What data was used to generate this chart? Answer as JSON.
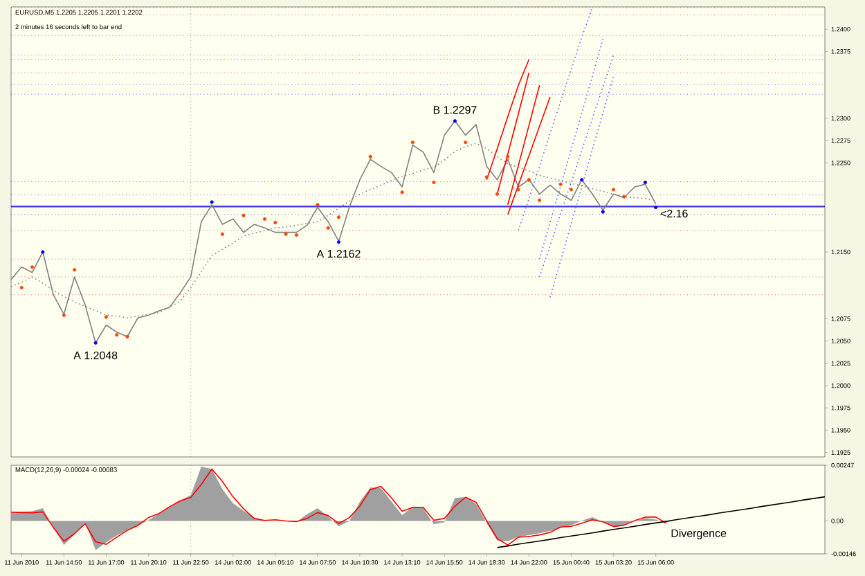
{
  "chart_data": [
    {
      "type": "line",
      "title": "EURUSD,M5  1.2205 1.2205 1.2201 1.2202",
      "subtitle": "2 minutes 16 seconds left to bar end",
      "categories": [
        null,
        "11 Jun 2010",
        null,
        null,
        null,
        "11 Jun 14:50",
        null,
        null,
        null,
        "11 Jun 17:00",
        null,
        null,
        null,
        "11 Jun 20:10",
        null,
        null,
        null,
        "11 Jun 22:50",
        null,
        null,
        null,
        "14 Jun 02:00",
        null,
        null,
        null,
        "14 Jun 05:10",
        null,
        null,
        null,
        "14 Jun 07:50",
        null,
        null,
        null,
        "14 Jun 10:30",
        null,
        null,
        null,
        "14 Jun 13:10",
        null,
        null,
        null,
        "14 Jun 15:50",
        null,
        null,
        null,
        "14 Jun 18:30",
        null,
        null,
        null,
        "14 Jun 22:00",
        null,
        null,
        null,
        "15 Jun 00:40",
        null,
        null,
        null,
        "15 Jun 03:20",
        null,
        null,
        null,
        "15 Jun 06:00",
        null,
        null,
        null,
        null,
        null,
        null,
        null,
        null,
        null,
        null,
        null,
        null,
        null,
        null,
        null,
        null
      ],
      "ylim": [
        1.192,
        1.2425
      ],
      "tick_labels": "y",
      "yticks": [
        {
          "value": 1.24,
          "label": "1.2400"
        },
        {
          "value": 1.2375,
          "label": "1.2375"
        },
        {
          "value": 1.23,
          "label": "1.2300"
        },
        {
          "value": 1.2275,
          "label": "1.2275"
        },
        {
          "value": 1.225,
          "label": "1.2250"
        },
        {
          "value": 1.215,
          "label": "1.2150"
        },
        {
          "value": 1.2075,
          "label": "1.2075"
        },
        {
          "value": 1.205,
          "label": "1.2050"
        },
        {
          "value": 1.2025,
          "label": "1.2025"
        },
        {
          "value": 1.2,
          "label": "1.2000"
        },
        {
          "value": 1.1975,
          "label": "1.1975"
        },
        {
          "value": 1.195,
          "label": "1.1950"
        },
        {
          "value": 1.1925,
          "label": "1.1925"
        }
      ],
      "series": [
        {
          "color": "#808080",
          "values": [
            1.2119,
            1.2133,
            1.2127,
            1.215,
            1.2102,
            1.208,
            1.2122,
            1.2091,
            1.2048,
            1.2068,
            1.206,
            1.2055,
            1.2076,
            1.2079,
            1.2084,
            1.2088,
            1.2104,
            1.2122,
            1.2184,
            1.2203,
            1.2181,
            1.2187,
            1.2172,
            1.2181,
            1.2177,
            1.2172,
            1.2172,
            1.2172,
            1.218,
            1.22,
            1.2184,
            1.2162,
            1.22,
            1.2231,
            1.2254,
            1.2246,
            1.2239,
            1.2223,
            1.227,
            1.2262,
            1.2239,
            1.2281,
            1.2297,
            1.2281,
            1.2293,
            1.2246,
            1.2231,
            1.2254,
            1.2223,
            1.2231,
            1.2215,
            1.2225,
            1.2215,
            1.2208,
            1.2231,
            1.2215,
            1.2197,
            1.2215,
            1.2211,
            1.2223,
            1.2226,
            1.2204,
            null,
            null,
            null,
            null,
            null,
            null,
            null,
            null,
            null,
            null,
            null,
            null,
            null,
            null,
            null,
            null
          ]
        },
        {
          "color": "#808080",
          "line_style": "dotted",
          "values": [
            1.2111,
            1.2116,
            1.2122,
            1.2115,
            1.2107,
            1.21,
            1.2094,
            1.2089,
            1.2084,
            1.2079,
            1.2078,
            1.2076,
            1.2078,
            1.208,
            1.2082,
            1.2088,
            1.2095,
            1.211,
            1.2128,
            1.2146,
            1.2153,
            1.216,
            1.2168,
            1.2171,
            1.2174,
            1.2177,
            1.2178,
            1.218,
            1.2182,
            1.2184,
            1.2191,
            1.2199,
            1.2207,
            1.2215,
            1.222,
            1.2225,
            1.223,
            1.2235,
            1.2238,
            1.2242,
            1.2245,
            1.2253,
            1.2263,
            1.2268,
            1.2272,
            1.2266,
            1.2257,
            1.2249,
            1.2245,
            1.2241,
            1.2236,
            1.2233,
            1.223,
            1.2227,
            1.2224,
            1.2221,
            1.2218,
            1.2215,
            1.2212,
            1.2211,
            1.221,
            1.2208,
            null,
            null,
            null,
            null,
            null,
            null,
            null,
            null,
            null,
            null,
            null,
            null,
            null,
            null,
            null,
            null
          ]
        },
        {
          "type": "scatter",
          "marker": "circle",
          "color": "#0000ff",
          "values": [
            null,
            null,
            null,
            1.215,
            null,
            null,
            null,
            null,
            1.2048,
            null,
            null,
            null,
            null,
            null,
            null,
            null,
            null,
            null,
            null,
            1.2206,
            null,
            null,
            null,
            null,
            null,
            null,
            null,
            null,
            null,
            null,
            null,
            1.2161,
            null,
            null,
            null,
            null,
            null,
            null,
            null,
            null,
            null,
            null,
            1.2297,
            null,
            null,
            null,
            null,
            null,
            null,
            null,
            null,
            null,
            null,
            null,
            1.2231,
            null,
            1.2195,
            null,
            null,
            null,
            1.2228,
            1.22,
            null,
            null,
            null,
            null,
            null,
            null,
            null,
            null,
            null,
            null,
            null,
            null,
            null,
            null,
            null,
            null
          ]
        },
        {
          "type": "scatter",
          "marker": "circle",
          "color": "#ff4500",
          "values": [
            null,
            1.211,
            1.2133,
            null,
            null,
            1.2079,
            1.213,
            null,
            null,
            1.2077,
            1.2057,
            1.2055,
            null,
            null,
            null,
            null,
            null,
            null,
            null,
            null,
            1.217,
            null,
            1.2191,
            null,
            1.2187,
            1.2183,
            1.217,
            1.2169,
            null,
            1.2203,
            1.2177,
            1.2189,
            null,
            null,
            1.2257,
            null,
            null,
            1.2217,
            1.2273,
            null,
            1.2228,
            null,
            null,
            1.2273,
            null,
            1.2234,
            1.2215,
            1.2257,
            1.222,
            1.2231,
            1.2208,
            null,
            1.2226,
            1.222,
            null,
            null,
            null,
            1.222,
            1.2212,
            null,
            null,
            null,
            null,
            null,
            null,
            null,
            null,
            null,
            null,
            null,
            null,
            null,
            null,
            null,
            null,
            null,
            null,
            null
          ]
        },
        {
          "color": "#ff0000",
          "values": [
            null,
            null,
            null,
            null,
            null,
            null,
            null,
            null,
            null,
            null,
            null,
            null,
            null,
            null,
            null,
            null,
            null,
            null,
            null,
            null,
            null,
            null,
            null,
            null,
            null,
            null,
            null,
            null,
            null,
            null,
            null,
            null,
            null,
            null,
            null,
            null,
            null,
            null,
            null,
            null,
            null,
            null,
            null,
            null,
            null,
            1.2231,
            1.2266,
            1.2302,
            1.2337,
            1.2366,
            null,
            null,
            null,
            null,
            null,
            null,
            null,
            null,
            null,
            null,
            null,
            null,
            null,
            null,
            null,
            null,
            null,
            null,
            null,
            null,
            null,
            null,
            null,
            null,
            null,
            null,
            null,
            null
          ]
        },
        {
          "color": "#ff0000",
          "values": [
            null,
            null,
            null,
            null,
            null,
            null,
            null,
            null,
            null,
            null,
            null,
            null,
            null,
            null,
            null,
            null,
            null,
            null,
            null,
            null,
            null,
            null,
            null,
            null,
            null,
            null,
            null,
            null,
            null,
            null,
            null,
            null,
            null,
            null,
            null,
            null,
            null,
            null,
            null,
            null,
            null,
            null,
            null,
            null,
            null,
            null,
            1.2215,
            1.226,
            1.2305,
            1.2351,
            null,
            null,
            null,
            null,
            null,
            null,
            null,
            null,
            null,
            null,
            null,
            null,
            null,
            null,
            null,
            null,
            null,
            null,
            null,
            null,
            null,
            null,
            null,
            null,
            null,
            null,
            null,
            null
          ]
        },
        {
          "color": "#ff0000",
          "values": [
            null,
            null,
            null,
            null,
            null,
            null,
            null,
            null,
            null,
            null,
            null,
            null,
            null,
            null,
            null,
            null,
            null,
            null,
            null,
            null,
            null,
            null,
            null,
            null,
            null,
            null,
            null,
            null,
            null,
            null,
            null,
            null,
            null,
            null,
            null,
            null,
            null,
            null,
            null,
            null,
            null,
            null,
            null,
            null,
            null,
            null,
            null,
            1.2203,
            1.2247,
            1.2292,
            1.2337,
            null,
            null,
            null,
            null,
            null,
            null,
            null,
            null,
            null,
            null,
            null,
            null,
            null,
            null,
            null,
            null,
            null,
            null,
            null,
            null,
            null,
            null,
            null,
            null,
            null,
            null,
            null
          ]
        },
        {
          "color": "#ff0000",
          "values": [
            null,
            null,
            null,
            null,
            null,
            null,
            null,
            null,
            null,
            null,
            null,
            null,
            null,
            null,
            null,
            null,
            null,
            null,
            null,
            null,
            null,
            null,
            null,
            null,
            null,
            null,
            null,
            null,
            null,
            null,
            null,
            null,
            null,
            null,
            null,
            null,
            null,
            null,
            null,
            null,
            null,
            null,
            null,
            null,
            null,
            null,
            null,
            1.2192,
            1.2225,
            1.2258,
            1.2291,
            1.2324,
            null,
            null,
            null,
            null,
            null,
            null,
            null,
            null,
            null,
            null,
            null,
            null,
            null,
            null,
            null,
            null,
            null,
            null,
            null,
            null,
            null,
            null,
            null,
            null,
            null,
            null
          ]
        },
        {
          "color": "#6060ff",
          "line_style": "dotted",
          "values": [
            null,
            null,
            null,
            null,
            null,
            null,
            null,
            null,
            null,
            null,
            null,
            null,
            null,
            null,
            null,
            null,
            null,
            null,
            null,
            null,
            null,
            null,
            null,
            null,
            null,
            null,
            null,
            null,
            null,
            null,
            null,
            null,
            null,
            null,
            null,
            null,
            null,
            null,
            null,
            null,
            null,
            null,
            null,
            null,
            null,
            null,
            null,
            null,
            1.2174,
            1.221,
            1.2246,
            1.2283,
            1.2319,
            1.2355,
            1.2391,
            1.2424,
            null,
            null,
            null,
            null,
            null,
            null,
            null,
            null,
            null,
            null,
            null,
            null,
            null,
            null,
            null,
            null,
            null,
            null,
            null,
            null,
            null,
            null
          ]
        },
        {
          "color": "#6060ff",
          "line_style": "dotted",
          "values": [
            null,
            null,
            null,
            null,
            null,
            null,
            null,
            null,
            null,
            null,
            null,
            null,
            null,
            null,
            null,
            null,
            null,
            null,
            null,
            null,
            null,
            null,
            null,
            null,
            null,
            null,
            null,
            null,
            null,
            null,
            null,
            null,
            null,
            null,
            null,
            null,
            null,
            null,
            null,
            null,
            null,
            null,
            null,
            null,
            null,
            null,
            null,
            null,
            null,
            null,
            1.2142,
            1.2183,
            1.2224,
            1.2265,
            1.2306,
            1.2347,
            1.2389,
            null,
            null,
            null,
            null,
            null,
            null,
            null,
            null,
            null,
            null,
            null,
            null,
            null,
            null,
            null,
            null,
            null,
            null,
            null,
            null,
            null
          ]
        },
        {
          "color": "#6060ff",
          "line_style": "dotted",
          "values": [
            null,
            null,
            null,
            null,
            null,
            null,
            null,
            null,
            null,
            null,
            null,
            null,
            null,
            null,
            null,
            null,
            null,
            null,
            null,
            null,
            null,
            null,
            null,
            null,
            null,
            null,
            null,
            null,
            null,
            null,
            null,
            null,
            null,
            null,
            null,
            null,
            null,
            null,
            null,
            null,
            null,
            null,
            null,
            null,
            null,
            null,
            null,
            null,
            null,
            null,
            1.2122,
            1.2157,
            1.2193,
            1.2228,
            1.2264,
            1.23,
            1.2335,
            1.2371,
            null,
            null,
            null,
            null,
            null,
            null,
            null,
            null,
            null,
            null,
            null,
            null,
            null,
            null,
            null,
            null,
            null,
            null,
            null,
            null
          ]
        },
        {
          "color": "#6060ff",
          "line_style": "dotted",
          "values": [
            null,
            null,
            null,
            null,
            null,
            null,
            null,
            null,
            null,
            null,
            null,
            null,
            null,
            null,
            null,
            null,
            null,
            null,
            null,
            null,
            null,
            null,
            null,
            null,
            null,
            null,
            null,
            null,
            null,
            null,
            null,
            null,
            null,
            null,
            null,
            null,
            null,
            null,
            null,
            null,
            null,
            null,
            null,
            null,
            null,
            null,
            null,
            null,
            null,
            null,
            null,
            1.2099,
            1.214,
            1.2182,
            1.2223,
            1.2265,
            1.2306,
            1.2347,
            null,
            null,
            null,
            null,
            null,
            null,
            null,
            null,
            null,
            null,
            null,
            null,
            null,
            null,
            null,
            null,
            null,
            null,
            null,
            null
          ]
        }
      ],
      "ref_lines": [
        {
          "axis": "y",
          "value": 1.2424,
          "color": "#ff3030",
          "line_style": "dotted"
        },
        {
          "axis": "y",
          "value": 1.2416,
          "color": "#ff3030",
          "line_style": "dotted"
        },
        {
          "axis": "y",
          "value": 1.2393,
          "color": "#ff3030",
          "line_style": "dotted"
        },
        {
          "axis": "y",
          "value": 1.2371,
          "color": "#ff3030",
          "line_style": "dotted"
        },
        {
          "axis": "y",
          "value": 1.2351,
          "color": "#ff3030",
          "line_style": "dotted"
        },
        {
          "axis": "y",
          "value": 1.2174,
          "color": "#ff3030",
          "line_style": "dotted"
        },
        {
          "axis": "y",
          "value": 1.2142,
          "color": "#ff3030",
          "line_style": "dotted"
        },
        {
          "axis": "y",
          "value": 1.2122,
          "color": "#ff3030",
          "line_style": "dotted"
        },
        {
          "axis": "y",
          "value": 1.2102,
          "color": "#ff3030",
          "line_style": "dotted"
        },
        {
          "axis": "y",
          "value": 1.2366,
          "color": "#3030ff",
          "line_style": "dotted"
        },
        {
          "axis": "y",
          "value": 1.2338,
          "color": "#3030ff",
          "line_style": "dotted"
        },
        {
          "axis": "y",
          "value": 1.2327,
          "color": "#3030ff",
          "line_style": "dotted"
        },
        {
          "axis": "y",
          "value": 1.2229,
          "color": "#3030ff",
          "line_style": "dotted"
        },
        {
          "axis": "y",
          "value": 1.2214,
          "color": "#3030ff",
          "line_style": "dotted"
        },
        {
          "axis": "y",
          "value": 1.2192,
          "color": "#3030ff",
          "line_style": "dotted"
        },
        {
          "axis": "y",
          "value": 1.2201,
          "color": "#4040e0",
          "line_style": "solid"
        },
        {
          "axis": "x",
          "value": "11 Jun 22:50",
          "color": "#808080",
          "line_style": "dotted"
        }
      ],
      "annotations": [
        {
          "text": "A 1.2048",
          "y": 1.2048
        },
        {
          "text": "A 1.2162",
          "y": 1.2162
        },
        {
          "text": "B 1.2297",
          "y": 1.2297
        },
        "<2.16"
      ]
    },
    {
      "type": "line",
      "title": "MACD(12,26,9) -0.00024 -0.00083",
      "categories": [
        null,
        "11 Jun 2010",
        null,
        null,
        null,
        "11 Jun 14:50",
        null,
        null,
        null,
        "11 Jun 17:00",
        null,
        null,
        null,
        "11 Jun 20:10",
        null,
        null,
        null,
        "11 Jun 22:50",
        null,
        null,
        null,
        "14 Jun 02:00",
        null,
        null,
        null,
        "14 Jun 05:10",
        null,
        null,
        null,
        "14 Jun 07:50",
        null,
        null,
        null,
        "14 Jun 10:30",
        null,
        null,
        null,
        "14 Jun 13:10",
        null,
        null,
        null,
        "14 Jun 15:50",
        null,
        null,
        null,
        "14 Jun 18:30",
        null,
        null,
        null,
        "14 Jun 22:00",
        null,
        null,
        null,
        "15 Jun 00:40",
        null,
        null,
        null,
        "15 Jun 03:20",
        null,
        null,
        null,
        "15 Jun 06:00",
        null,
        null,
        null,
        null,
        null,
        null,
        null,
        null,
        null,
        null,
        null,
        null,
        null,
        null,
        null,
        null
      ],
      "ylim": [
        -0.00146,
        0.00247
      ],
      "yticks": [
        {
          "value": 0.00247,
          "label": "0.00247"
        },
        {
          "value": 0,
          "label": "0.00"
        },
        {
          "value": -0.00146,
          "label": "-0.00146"
        }
      ],
      "series": [
        {
          "type": "area",
          "color": "#a0a0a0",
          "values": [
            0.00039,
            0.00041,
            0.00043,
            0.00057,
            -0.0003,
            -0.00107,
            -0.0006,
            -6e-05,
            -0.00129,
            -0.00095,
            -0.00065,
            -0.00041,
            -0.0002,
            3e-05,
            0.00033,
            0.00063,
            0.00091,
            0.00114,
            0.00241,
            0.0023,
            0.0014,
            0.00078,
            0.00045,
            0.00015,
            -1e-05,
            2e-05,
            -1e-05,
            -4e-05,
            0.0003,
            0.00057,
            0.0002,
            -0.00024,
            -1e-05,
            0.00085,
            0.00149,
            0.00145,
            0.00086,
            0.00026,
            0.00062,
            0.00056,
            -0.00015,
            -6e-05,
            0.00102,
            0.00106,
            0.00076,
            -0.0001,
            -0.00088,
            -0.0009,
            -0.00071,
            -0.00063,
            -0.00055,
            -0.00045,
            -0.00031,
            -0.00019,
            1e-05,
            0.00017,
            -4e-05,
            -0.00026,
            -0.00018,
            -2e-05,
            0.00013,
            6e-05,
            -0.0001,
            null,
            null,
            null,
            null,
            null,
            null,
            null,
            null,
            null,
            null,
            null,
            null,
            null,
            null,
            null
          ]
        },
        {
          "color": "#ff0000",
          "values": [
            0.00039,
            0.00037,
            0.00036,
            0.0004,
            -0.00029,
            -0.0009,
            -0.00057,
            -0.00012,
            -0.00092,
            -0.00104,
            -0.00072,
            -0.00042,
            -0.0002,
            0.00015,
            0.00033,
            0.00063,
            0.00089,
            0.00104,
            0.00162,
            0.0023,
            0.00175,
            0.00107,
            0.00054,
            0.00011,
            2e-05,
            5e-05,
            0.0,
            -3e-05,
            0.00011,
            0.00037,
            0.00024,
            -0.00011,
            0.00014,
            0.00066,
            0.00139,
            0.00153,
            0.00102,
            0.00043,
            0.0006,
            0.0006,
            3e-05,
            0.00011,
            0.00065,
            0.00105,
            0.00083,
            0.0,
            -0.00078,
            -0.00107,
            -0.00072,
            -0.00069,
            -0.00062,
            -0.00051,
            -0.00027,
            -0.00024,
            -0.0001,
            5e-05,
            -4e-05,
            -0.00025,
            -0.00019,
            1e-05,
            0.00017,
            0.00017,
            -0.0001,
            null,
            null,
            null,
            null,
            null,
            null,
            null,
            null,
            null,
            null,
            null,
            null,
            null,
            null,
            null
          ]
        },
        {
          "color": "#000000",
          "values": [
            null,
            null,
            null,
            null,
            null,
            null,
            null,
            null,
            null,
            null,
            null,
            null,
            null,
            null,
            null,
            null,
            null,
            null,
            null,
            null,
            null,
            null,
            null,
            null,
            null,
            null,
            null,
            null,
            null,
            null,
            null,
            null,
            null,
            null,
            null,
            null,
            null,
            null,
            null,
            null,
            null,
            null,
            null,
            null,
            null,
            null,
            -0.00118,
            -0.00111,
            -0.00103,
            -0.00096,
            -0.00089,
            -0.00082,
            -0.00074,
            -0.00067,
            -0.0006,
            -0.00053,
            -0.00045,
            -0.00038,
            -0.00031,
            -0.00024,
            -0.00016,
            -9e-05,
            -2e-05,
            6e-05,
            0.00013,
            0.0002,
            0.00027,
            0.00035,
            0.00042,
            0.00049,
            0.00056,
            0.00064,
            0.00071,
            0.00078,
            0.00085,
            0.00093,
            0.001,
            0.00107
          ]
        }
      ],
      "ref_lines": [
        {
          "axis": "x",
          "value": "11 Jun 22:50",
          "color": "#808080",
          "line_style": "dotted"
        }
      ],
      "annotations": [
        "Divergence"
      ]
    }
  ]
}
